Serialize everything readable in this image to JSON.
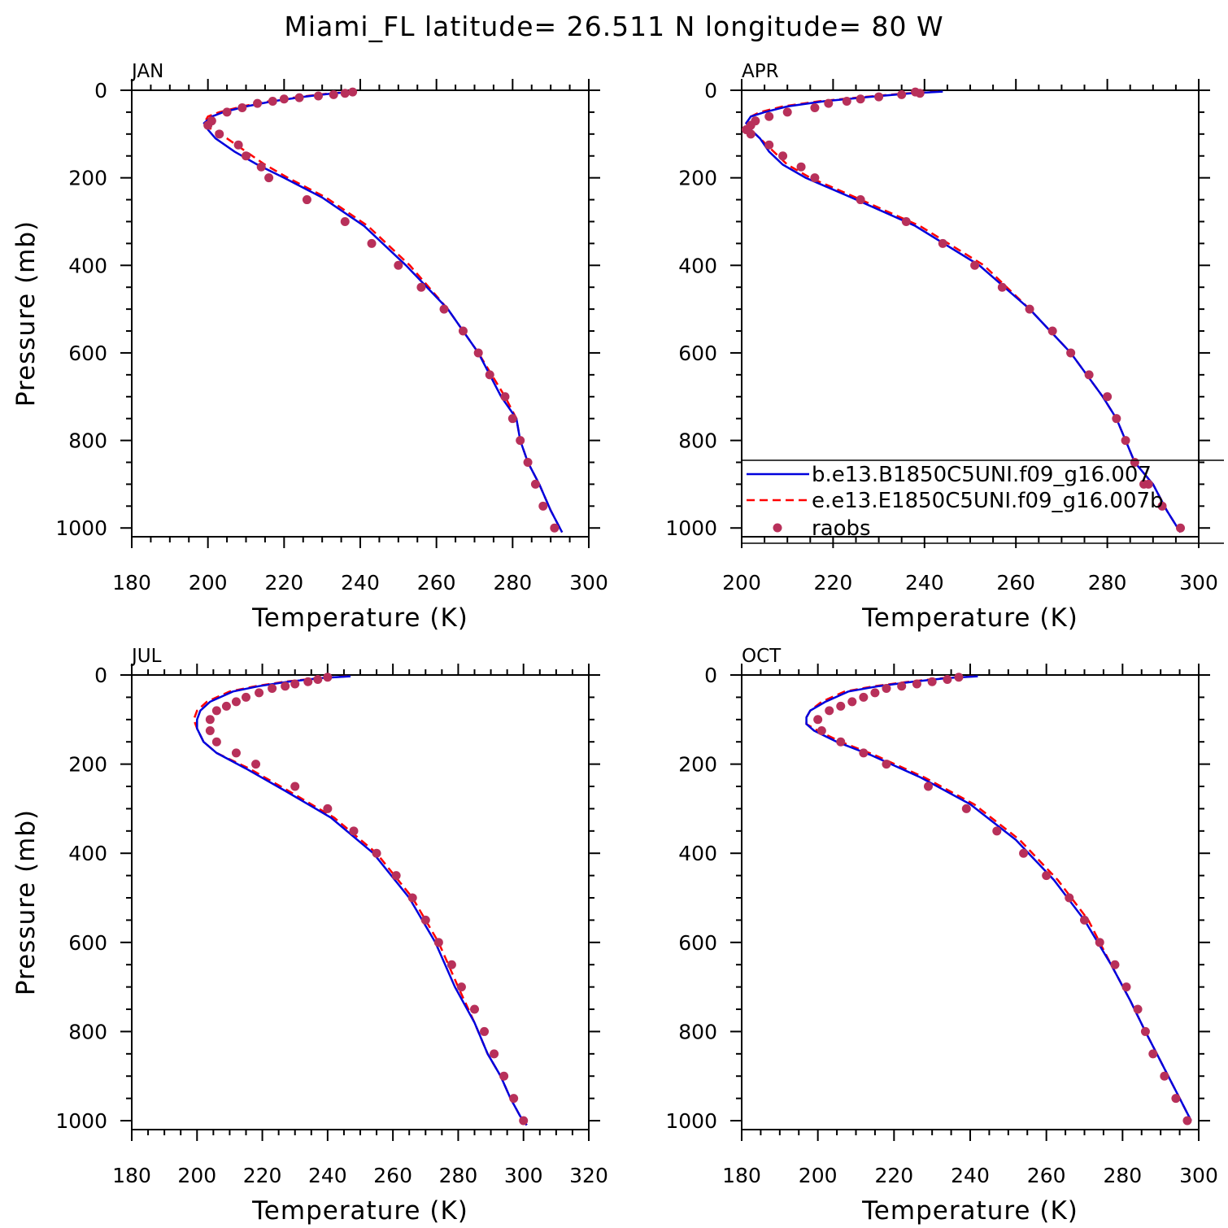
{
  "title": "Miami_FL  latitude= 26.511 N longitude= 80 W",
  "colors": {
    "model_b": "#0000dd",
    "model_e": "#ff0000",
    "raobs": "#b8305a",
    "axes": "#000000"
  },
  "legend": {
    "items": [
      {
        "label": "b.e13.B1850C5UNI.f09_g16.007",
        "style": "solid",
        "color": "#0000dd"
      },
      {
        "label": "e.e13.E1850C5UNI.f09_g16.007b",
        "style": "dashed",
        "color": "#ff0000"
      },
      {
        "label": "raobs",
        "style": "dot",
        "color": "#b8305a"
      }
    ]
  },
  "chart_data": [
    {
      "type": "line",
      "panel": "JAN",
      "xlabel": "Temperature (K)",
      "ylabel": "Pressure (mb)",
      "xlim": [
        180,
        300
      ],
      "ylim": [
        1020,
        0
      ],
      "y_reversed": true,
      "xticks": [
        180,
        200,
        220,
        240,
        260,
        280,
        300
      ],
      "yticks": [
        0,
        200,
        400,
        600,
        800,
        1000
      ],
      "series": [
        {
          "name": "b.e13.B1850C5UNI.f09_g16.007",
          "x": [
            239,
            233,
            225,
            217,
            210,
            204,
            201,
            199,
            200,
            202,
            207,
            213,
            220,
            230,
            241,
            252,
            263,
            271,
            277,
            281,
            282,
            284,
            287,
            290,
            293
          ],
          "y": [
            3,
            7,
            15,
            25,
            37,
            50,
            60,
            75,
            90,
            110,
            140,
            170,
            200,
            245,
            310,
            400,
            500,
            600,
            700,
            750,
            800,
            850,
            900,
            960,
            1010
          ]
        },
        {
          "name": "e.e13.E1850C5UNI.f09_g16.007b",
          "x": [
            238,
            232,
            224,
            216,
            209,
            203,
            200,
            199,
            201,
            205,
            210,
            215,
            221,
            231,
            242,
            253,
            263,
            271,
            278,
            281,
            282,
            284,
            287,
            290,
            293
          ],
          "y": [
            3,
            7,
            15,
            25,
            37,
            50,
            60,
            75,
            90,
            110,
            140,
            170,
            200,
            245,
            310,
            400,
            500,
            600,
            700,
            750,
            800,
            850,
            900,
            960,
            1010
          ]
        },
        {
          "name": "raobs",
          "x": [
            217,
            213,
            209,
            205,
            201,
            200,
            203,
            208,
            210,
            214,
            216,
            226,
            236,
            243,
            250,
            256,
            262,
            267,
            271,
            274,
            278,
            280,
            282,
            284,
            286,
            288,
            291
          ],
          "y": [
            25,
            30,
            40,
            50,
            70,
            80,
            100,
            125,
            150,
            175,
            200,
            250,
            300,
            350,
            400,
            450,
            500,
            550,
            600,
            650,
            700,
            750,
            800,
            850,
            900,
            950,
            1000
          ],
          "points_at_top": {
            "x": [
              220,
              224,
              229,
              233,
              236,
              238
            ],
            "y": [
              20,
              17,
              13,
              10,
              7,
              4
            ]
          }
        }
      ]
    },
    {
      "type": "line",
      "panel": "APR",
      "xlabel": "Temperature (K)",
      "ylabel": "",
      "xlim": [
        200,
        300
      ],
      "ylim": [
        1020,
        0
      ],
      "y_reversed": true,
      "xticks": [
        200,
        220,
        240,
        260,
        280,
        300
      ],
      "yticks": [
        0,
        200,
        400,
        600,
        800,
        1000
      ],
      "series": [
        {
          "name": "b.e13.B1850C5UNI.f09_g16.007",
          "x": [
            244,
            237,
            228,
            218,
            210,
            205,
            202,
            201,
            202,
            204,
            206,
            209,
            214,
            224,
            238,
            252,
            263,
            272,
            279,
            282,
            284,
            286,
            290,
            293,
            296
          ],
          "y": [
            3,
            7,
            15,
            25,
            37,
            50,
            60,
            75,
            90,
            110,
            140,
            170,
            200,
            245,
            310,
            400,
            500,
            600,
            700,
            750,
            800,
            850,
            900,
            960,
            1010
          ]
        },
        {
          "name": "e.e13.E1850C5UNI.f09_g16.007b",
          "x": [
            243,
            236,
            227,
            217,
            209,
            204,
            202,
            201,
            202,
            204,
            207,
            210,
            215,
            225,
            239,
            253,
            263,
            272,
            279,
            282,
            284,
            286,
            290,
            293,
            296
          ],
          "y": [
            3,
            7,
            15,
            25,
            37,
            50,
            60,
            75,
            90,
            110,
            140,
            170,
            200,
            245,
            310,
            400,
            500,
            600,
            700,
            750,
            800,
            850,
            900,
            960,
            1010
          ]
        },
        {
          "name": "raobs",
          "x": [
            226,
            223,
            219,
            216,
            210,
            206,
            203,
            202,
            201,
            202,
            206,
            209,
            213,
            216,
            226,
            236,
            244,
            251,
            257,
            263,
            268,
            272,
            276,
            280,
            282,
            284,
            286,
            288,
            289,
            292,
            296
          ],
          "y": [
            20,
            25,
            30,
            40,
            50,
            60,
            70,
            80,
            90,
            100,
            125,
            150,
            175,
            200,
            250,
            300,
            350,
            400,
            450,
            500,
            550,
            600,
            650,
            700,
            750,
            800,
            850,
            900,
            900,
            950,
            1000
          ],
          "points_at_top": {
            "x": [
              230,
              235,
              239,
              238
            ],
            "y": [
              15,
              10,
              7,
              4
            ]
          }
        }
      ]
    },
    {
      "type": "line",
      "panel": "JUL",
      "xlabel": "Temperature (K)",
      "ylabel": "Pressure (mb)",
      "xlim": [
        180,
        320
      ],
      "ylim": [
        1020,
        0
      ],
      "y_reversed": true,
      "xticks": [
        180,
        200,
        220,
        240,
        260,
        280,
        300,
        320
      ],
      "yticks": [
        0,
        200,
        400,
        600,
        800,
        1000
      ],
      "series": [
        {
          "name": "b.e13.B1850C5UNI.f09_g16.007",
          "x": [
            247,
            238,
            228,
            219,
            211,
            204,
            201,
            200,
            200,
            202,
            206,
            215,
            227,
            241,
            254,
            265,
            273,
            279,
            285,
            289,
            293,
            296,
            299,
            301
          ],
          "y": [
            3,
            7,
            15,
            25,
            37,
            60,
            80,
            100,
            120,
            150,
            175,
            210,
            260,
            320,
            400,
            500,
            600,
            700,
            780,
            850,
            900,
            950,
            990,
            1010
          ]
        },
        {
          "name": "e.e13.E1850C5UNI.f09_g16.007b",
          "x": [
            246,
            237,
            227,
            218,
            210,
            203,
            200,
            199,
            200,
            202,
            206,
            216,
            228,
            242,
            255,
            266,
            274,
            280,
            285,
            289,
            293,
            296,
            299,
            301
          ],
          "y": [
            3,
            7,
            15,
            25,
            37,
            60,
            80,
            100,
            120,
            150,
            175,
            210,
            260,
            320,
            400,
            500,
            600,
            700,
            780,
            850,
            900,
            950,
            990,
            1010
          ]
        },
        {
          "name": "raobs",
          "x": [
            227,
            223,
            219,
            215,
            212,
            209,
            206,
            204,
            204,
            206,
            212,
            218,
            230,
            240,
            248,
            255,
            261,
            266,
            270,
            274,
            278,
            281,
            285,
            288,
            291,
            294,
            297,
            300
          ],
          "y": [
            25,
            30,
            40,
            50,
            60,
            70,
            80,
            100,
            125,
            150,
            175,
            200,
            250,
            300,
            350,
            400,
            450,
            500,
            550,
            600,
            650,
            700,
            750,
            800,
            850,
            900,
            950,
            1000
          ],
          "points_at_top": {
            "x": [
              230,
              234,
              237,
              240
            ],
            "y": [
              20,
              15,
              10,
              5
            ]
          }
        }
      ]
    },
    {
      "type": "line",
      "panel": "OCT",
      "xlabel": "Temperature (K)",
      "ylabel": "",
      "xlim": [
        180,
        300
      ],
      "ylim": [
        1020,
        0
      ],
      "y_reversed": true,
      "xticks": [
        180,
        200,
        220,
        240,
        260,
        280,
        300
      ],
      "yticks": [
        0,
        200,
        400,
        600,
        800,
        1000
      ],
      "series": [
        {
          "name": "b.e13.B1850C5UNI.f09_g16.007",
          "x": [
            242,
            234,
            225,
            216,
            208,
            202,
            198,
            197,
            197,
            199,
            205,
            214,
            227,
            240,
            252,
            262,
            270,
            277,
            282,
            286,
            289,
            292,
            295,
            298
          ],
          "y": [
            3,
            7,
            15,
            25,
            37,
            60,
            80,
            95,
            110,
            125,
            150,
            180,
            230,
            290,
            370,
            460,
            550,
            650,
            730,
            800,
            850,
            900,
            950,
            1000
          ]
        },
        {
          "name": "e.e13.E1850C5UNI.f09_g16.007b",
          "x": [
            241,
            233,
            224,
            215,
            207,
            201,
            198,
            197,
            197,
            200,
            206,
            215,
            228,
            241,
            253,
            263,
            271,
            277,
            282,
            286,
            289,
            292,
            295,
            298
          ],
          "y": [
            3,
            7,
            15,
            25,
            37,
            60,
            80,
            95,
            110,
            125,
            150,
            180,
            230,
            290,
            370,
            460,
            550,
            650,
            730,
            800,
            850,
            900,
            950,
            1000
          ]
        },
        {
          "name": "raobs",
          "x": [
            222,
            218,
            215,
            212,
            209,
            206,
            203,
            200,
            201,
            206,
            212,
            218,
            229,
            239,
            247,
            254,
            260,
            266,
            270,
            274,
            278,
            281,
            284,
            286,
            288,
            291,
            294,
            297
          ],
          "y": [
            25,
            30,
            40,
            50,
            60,
            70,
            80,
            100,
            125,
            150,
            175,
            200,
            250,
            300,
            350,
            400,
            450,
            500,
            550,
            600,
            650,
            700,
            750,
            800,
            850,
            900,
            950,
            1000
          ],
          "points_at_top": {
            "x": [
              226,
              230,
              234,
              237
            ],
            "y": [
              20,
              15,
              10,
              5
            ]
          }
        }
      ]
    }
  ]
}
